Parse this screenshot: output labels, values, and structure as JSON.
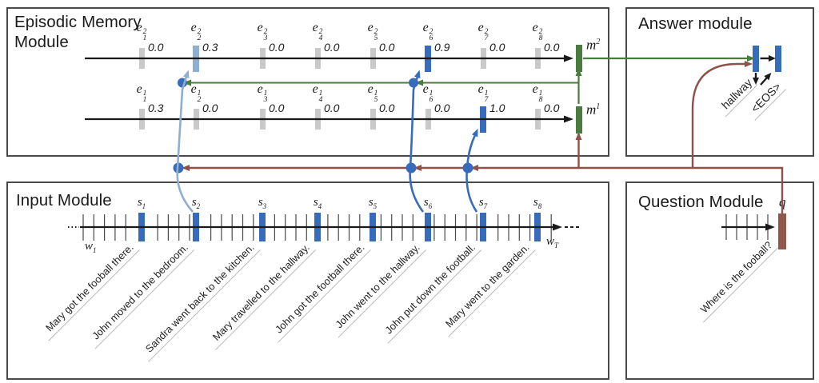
{
  "episodic": {
    "title": "Episodic Memory Module",
    "passes": [
      {
        "m": {
          "base": "m",
          "sup": "2"
        },
        "gates": [
          {
            "base": "e",
            "sup": "2",
            "sub": "1",
            "value": "0.0",
            "highlight": "none"
          },
          {
            "base": "e",
            "sup": "2",
            "sub": "2",
            "value": "0.3",
            "highlight": "light"
          },
          {
            "base": "e",
            "sup": "2",
            "sub": "3",
            "value": "0.0",
            "highlight": "none"
          },
          {
            "base": "e",
            "sup": "2",
            "sub": "4",
            "value": "0.0",
            "highlight": "none"
          },
          {
            "base": "e",
            "sup": "2",
            "sub": "5",
            "value": "0.0",
            "highlight": "none"
          },
          {
            "base": "e",
            "sup": "2",
            "sub": "6",
            "value": "0.9",
            "highlight": "full"
          },
          {
            "base": "e",
            "sup": "2",
            "sub": "7",
            "value": "0.0",
            "highlight": "none"
          },
          {
            "base": "e",
            "sup": "2",
            "sub": "8",
            "value": "0.0",
            "highlight": "none"
          }
        ]
      },
      {
        "m": {
          "base": "m",
          "sup": "1"
        },
        "gates": [
          {
            "base": "e",
            "sup": "1",
            "sub": "1",
            "value": "0.3",
            "highlight": "none"
          },
          {
            "base": "e",
            "sup": "1",
            "sub": "2",
            "value": "0.0",
            "highlight": "none"
          },
          {
            "base": "e",
            "sup": "1",
            "sub": "3",
            "value": "0.0",
            "highlight": "none"
          },
          {
            "base": "e",
            "sup": "1",
            "sub": "4",
            "value": "0.0",
            "highlight": "none"
          },
          {
            "base": "e",
            "sup": "1",
            "sub": "5",
            "value": "0.0",
            "highlight": "none"
          },
          {
            "base": "e",
            "sup": "1",
            "sub": "6",
            "value": "0.0",
            "highlight": "none"
          },
          {
            "base": "e",
            "sup": "1",
            "sub": "7",
            "value": "1.0",
            "highlight": "full"
          },
          {
            "base": "e",
            "sup": "1",
            "sub": "8",
            "value": "0.0",
            "highlight": "none"
          }
        ]
      }
    ]
  },
  "answer": {
    "title": "Answer module",
    "predictions": [
      "hallway",
      "<EOS>"
    ]
  },
  "input": {
    "title": "Input Module",
    "w_start": {
      "base": "w",
      "sub": "1"
    },
    "w_end": {
      "base": "w",
      "sub": "T"
    },
    "sentences": [
      {
        "label": {
          "base": "s",
          "sub": "1"
        },
        "text": "Mary got the fooball there."
      },
      {
        "label": {
          "base": "s",
          "sub": "2"
        },
        "text": "John moved to the bedroom."
      },
      {
        "label": {
          "base": "s",
          "sub": "3"
        },
        "text": "Sandra went back to the kitchen."
      },
      {
        "label": {
          "base": "s",
          "sub": "4"
        },
        "text": "Mary travelled to the hallway."
      },
      {
        "label": {
          "base": "s",
          "sub": "5"
        },
        "text": "John got the football there."
      },
      {
        "label": {
          "base": "s",
          "sub": "6"
        },
        "text": "John went to the hallway."
      },
      {
        "label": {
          "base": "s",
          "sub": "7"
        },
        "text": "John put down the football."
      },
      {
        "label": {
          "base": "s",
          "sub": "8"
        },
        "text": "Mary went to the garden."
      }
    ]
  },
  "question": {
    "title": "Question Module",
    "label": "q",
    "text": "Where is the fooball?"
  },
  "colors": {
    "blue": "#376bbc",
    "light_blue": "#8fafd0",
    "green": "#4b7c3f",
    "brown": "#8e5148",
    "maroon_bar": "#91564c",
    "gray_bar": "#c9c9c9",
    "black": "#1a1a1a"
  }
}
